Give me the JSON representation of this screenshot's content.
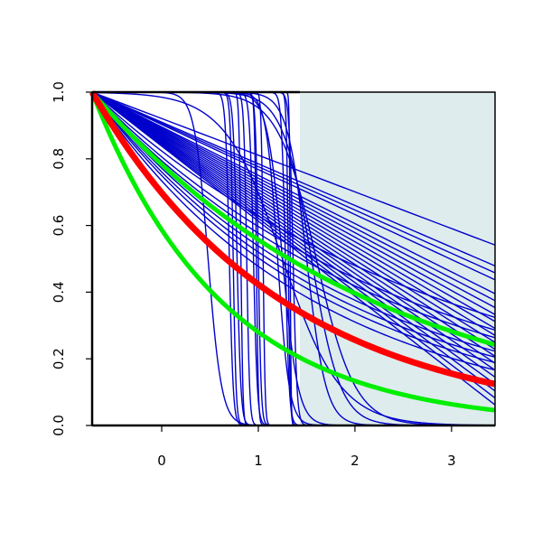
{
  "chart_data": {
    "type": "line",
    "title": "",
    "xlabel": "",
    "ylabel": "",
    "xlim": [
      -0.72,
      3.45
    ],
    "ylim": [
      0,
      1
    ],
    "x_ticks": [
      "0",
      "1",
      "2",
      "3"
    ],
    "y_ticks": [
      "0.0",
      "0.2",
      "0.4",
      "0.6",
      "0.8",
      "1.0"
    ],
    "grid": false,
    "shaded_region": {
      "x": [
        1.43,
        3.45
      ],
      "y": [
        0,
        1
      ],
      "color": "#deeced"
    },
    "x_start": -0.72,
    "colors": {
      "blue": "#0000cc",
      "red": "#ff0000",
      "green": "#00ee00"
    },
    "blue_linear_rates": [
      0.11,
      0.125,
      0.13,
      0.135,
      0.145,
      0.15,
      0.155,
      0.16,
      0.165,
      0.17,
      0.175,
      0.18,
      0.185,
      0.19,
      0.195,
      0.2,
      0.205,
      0.21,
      0.215,
      0.22,
      0.225
    ],
    "blue_exp_rates": [
      0.27,
      0.3,
      0.32,
      0.34,
      0.36,
      0.38,
      0.4,
      0.43
    ],
    "blue_steps": [
      {
        "center": 0.48,
        "steep": 0.07
      },
      {
        "center": 0.7,
        "steep": 0.02
      },
      {
        "center": 0.74,
        "steep": 0.015
      },
      {
        "center": 0.78,
        "steep": 0.02
      },
      {
        "center": 0.82,
        "steep": 0.01
      },
      {
        "center": 0.88,
        "steep": 0.015
      },
      {
        "center": 0.95,
        "steep": 0.02
      },
      {
        "center": 0.98,
        "steep": 0.01
      },
      {
        "center": 1.0,
        "steep": 0.015
      },
      {
        "center": 1.05,
        "steep": 0.01
      },
      {
        "center": 1.2,
        "steep": 0.06
      },
      {
        "center": 1.25,
        "steep": 0.08
      },
      {
        "center": 1.28,
        "steep": 0.02
      },
      {
        "center": 1.31,
        "steep": 0.01
      },
      {
        "center": 1.33,
        "steep": 0.005
      },
      {
        "center": 1.36,
        "steep": 0.02
      },
      {
        "center": 1.5,
        "steep": 0.1
      },
      {
        "center": 1.55,
        "steep": 0.15
      },
      {
        "center": 1.6,
        "steep": 0.2
      },
      {
        "center": 1.25,
        "steep": 0.3
      }
    ],
    "red_rate": 0.5,
    "green_rates": [
      0.34,
      0.74
    ]
  }
}
